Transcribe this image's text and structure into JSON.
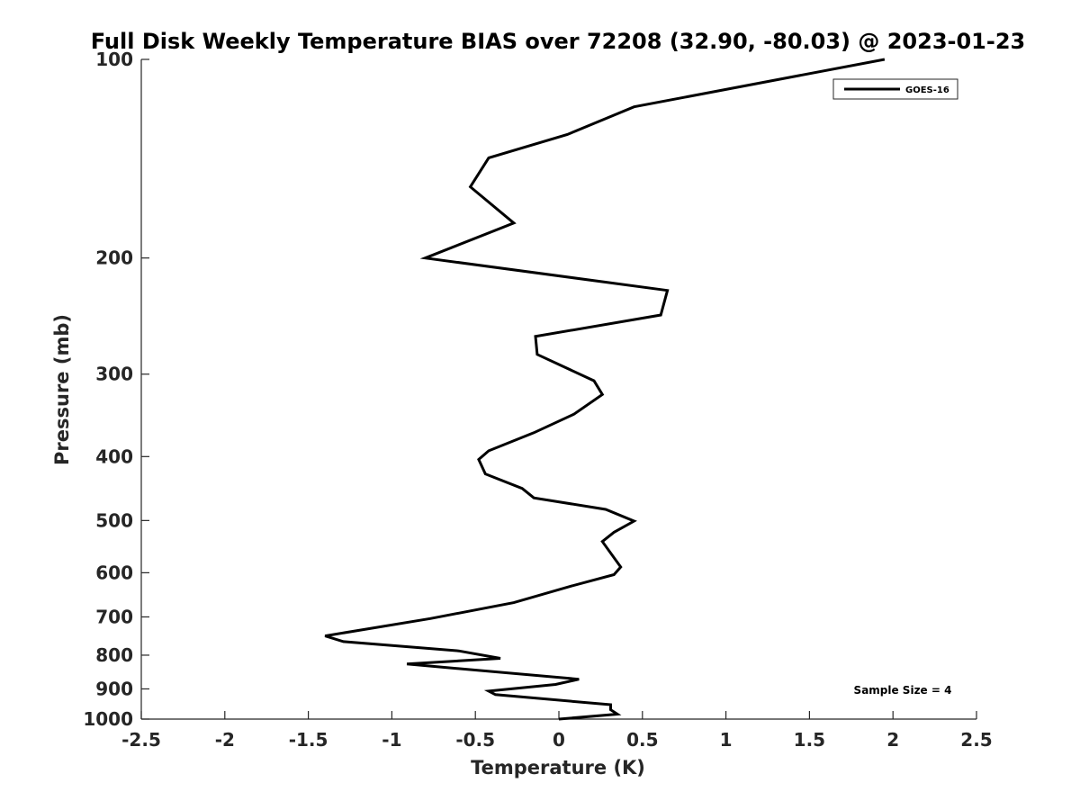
{
  "chart_data": {
    "type": "line",
    "title": "Full Disk Weekly Temperature BIAS over 72208 (32.90, -80.03) @ 2023-01-23",
    "xlabel": "Temperature (K)",
    "ylabel": "Pressure (mb)",
    "xlim": [
      -2.5,
      2.5
    ],
    "ylim": [
      100,
      1000
    ],
    "yscale": "log",
    "yaxis_reversed": true,
    "xticks": [
      -2.5,
      -2,
      -1.5,
      -1,
      -0.5,
      0,
      0.5,
      1,
      1.5,
      2,
      2.5
    ],
    "xtick_labels": [
      "-2.5",
      "-2",
      "-1.5",
      "-1",
      "-0.5",
      "0",
      "0.5",
      "1",
      "1.5",
      "2",
      "2.5"
    ],
    "yticks": [
      100,
      200,
      300,
      400,
      500,
      600,
      700,
      800,
      900,
      1000
    ],
    "ytick_labels": [
      "100",
      "200",
      "300",
      "400",
      "500",
      "600",
      "700",
      "800",
      "900",
      "1000"
    ],
    "grid": false,
    "legend": {
      "position": "top-right",
      "entries": [
        "GOES-16"
      ]
    },
    "annotation": "Sample Size = 4",
    "series": [
      {
        "name": "GOES-16",
        "color": "#000000",
        "points": [
          [
            1.95,
            100
          ],
          [
            0.45,
            118
          ],
          [
            0.05,
            130
          ],
          [
            -0.42,
            141
          ],
          [
            -0.53,
            156
          ],
          [
            -0.27,
            177
          ],
          [
            -0.8,
            200
          ],
          [
            0.65,
            224
          ],
          [
            0.61,
            244
          ],
          [
            -0.14,
            263
          ],
          [
            -0.13,
            280
          ],
          [
            0.21,
            307
          ],
          [
            0.26,
            322
          ],
          [
            0.09,
            345
          ],
          [
            -0.15,
            368
          ],
          [
            -0.42,
            392
          ],
          [
            -0.48,
            404
          ],
          [
            -0.44,
            425
          ],
          [
            -0.22,
            447
          ],
          [
            -0.15,
            462
          ],
          [
            0.28,
            481
          ],
          [
            0.45,
            501
          ],
          [
            0.33,
            521
          ],
          [
            0.26,
            538
          ],
          [
            0.37,
            588
          ],
          [
            0.33,
            604
          ],
          [
            0.06,
            630
          ],
          [
            -0.27,
            666
          ],
          [
            -0.77,
            704
          ],
          [
            -1.4,
            748
          ],
          [
            -1.29,
            763
          ],
          [
            -0.6,
            788
          ],
          [
            -0.35,
            809
          ],
          [
            -0.91,
            825
          ],
          [
            0.12,
            870
          ],
          [
            -0.02,
            886
          ],
          [
            -0.42,
            907
          ],
          [
            -0.38,
            918
          ],
          [
            0.31,
            951
          ],
          [
            0.31,
            968
          ],
          [
            0.35,
            983
          ],
          [
            0.0,
            1000
          ]
        ]
      }
    ]
  }
}
